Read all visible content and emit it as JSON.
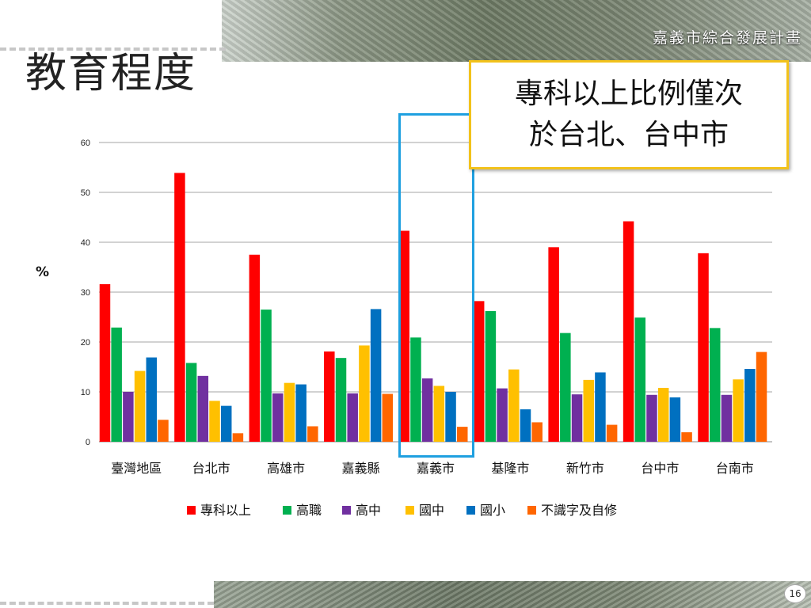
{
  "slide": {
    "title": "教育程度",
    "brand": "嘉義市綜合發展計畫",
    "callout_lines": [
      "專科以上比例僅次",
      "於台北、台中市"
    ],
    "page_number": "16"
  },
  "colors": {
    "callout_border": "#f2c21b",
    "highlight_box": "#1fa0e0"
  },
  "chart_data": {
    "type": "bar",
    "ylabel": "%",
    "ylim": [
      0,
      60
    ],
    "yticks": [
      0,
      10,
      20,
      30,
      40,
      50,
      60
    ],
    "grid": true,
    "legend_position": "bottom",
    "categories": [
      "臺灣地區",
      "台北市",
      "高雄市",
      "嘉義縣",
      "嘉義市",
      "基隆市",
      "新竹市",
      "台中市",
      "台南市"
    ],
    "highlighted_category": "嘉義市",
    "series": [
      {
        "name": "專科以上",
        "color": "#ff0000",
        "values": [
          31.6,
          53.9,
          37.5,
          18.1,
          42.3,
          28.2,
          39.0,
          44.2,
          37.8
        ]
      },
      {
        "name": "高職",
        "color": "#00b050",
        "values": [
          22.9,
          15.8,
          26.5,
          16.8,
          20.9,
          26.2,
          21.8,
          24.9,
          22.8
        ]
      },
      {
        "name": "高中",
        "color": "#7030a0",
        "values": [
          10.0,
          13.2,
          9.7,
          9.7,
          12.7,
          10.7,
          9.5,
          9.4,
          9.4
        ]
      },
      {
        "name": "國中",
        "color": "#ffc000",
        "values": [
          14.2,
          8.2,
          11.8,
          19.3,
          11.2,
          14.5,
          12.4,
          10.8,
          12.5
        ]
      },
      {
        "name": "國小",
        "color": "#0070c0",
        "values": [
          16.9,
          7.2,
          11.5,
          26.6,
          10.0,
          6.5,
          13.9,
          8.9,
          14.6
        ]
      },
      {
        "name": "不識字及自修",
        "color": "#ff6600",
        "values": [
          4.4,
          1.7,
          3.1,
          9.6,
          3.0,
          3.9,
          3.4,
          1.9,
          18.0
        ]
      }
    ]
  }
}
